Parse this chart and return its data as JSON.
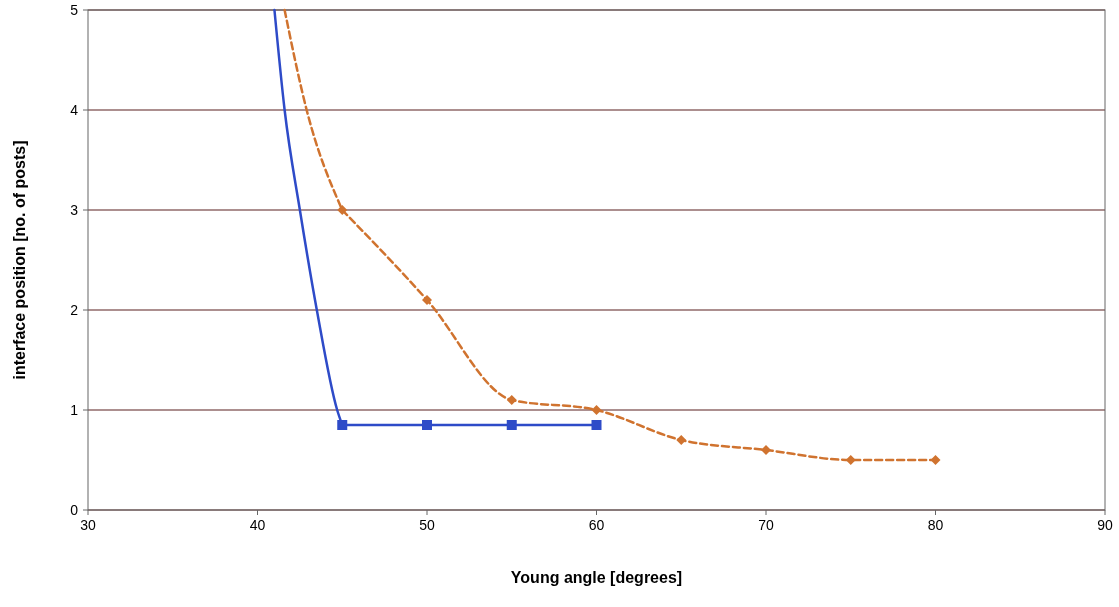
{
  "chart_data": {
    "type": "line",
    "xlabel": "Young angle [degrees]",
    "ylabel": "interface position [no. of posts]",
    "xlim": [
      30,
      90
    ],
    "xticks": [
      30,
      40,
      50,
      60,
      70,
      80,
      90
    ],
    "ylim": [
      0,
      5
    ],
    "yticks": [
      0,
      1,
      2,
      3,
      4,
      5
    ],
    "grid": "y",
    "series": [
      {
        "color": "#2e4bc8",
        "x": [
          41,
          41.6,
          42.5,
          43.5,
          44.7,
          45
        ],
        "values": [
          5,
          4,
          3,
          2,
          1,
          0.85
        ],
        "marker": "none",
        "line_style": "solid"
      },
      {
        "color": "#2e4bc8",
        "x": [
          45,
          50,
          55,
          60
        ],
        "values": [
          0.85,
          0.85,
          0.85,
          0.85
        ],
        "marker": "square",
        "line_style": "solid"
      },
      {
        "color": "#d0732f",
        "x": [
          41.6,
          42.9,
          45
        ],
        "values": [
          5,
          4,
          3
        ],
        "marker": "none",
        "line_style": "dashed"
      },
      {
        "color": "#d0732f",
        "x": [
          45,
          50,
          55,
          60,
          65,
          70,
          75,
          80
        ],
        "values": [
          3,
          2.1,
          1.1,
          1.0,
          0.7,
          0.6,
          0.5,
          0.5
        ],
        "marker": "diamond",
        "line_style": "dashed"
      }
    ]
  }
}
